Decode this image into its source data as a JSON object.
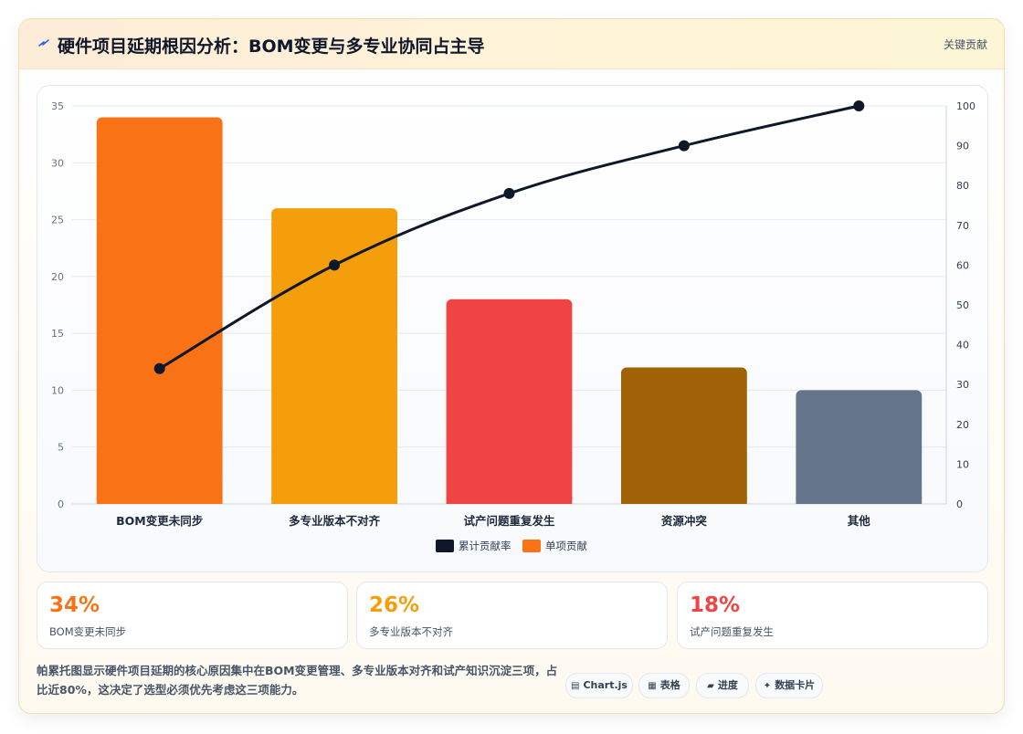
{
  "header": {
    "title": "硬件项目延期根因分析：BOM变更与多专业协同占主导",
    "tag": "关键贡献"
  },
  "chart_data": {
    "type": "bar",
    "categories": [
      "BOM变更未同步",
      "多专业版本不对齐",
      "试产问题重复发生",
      "资源冲突",
      "其他"
    ],
    "series": [
      {
        "name": "累计贡献率",
        "type": "line",
        "axis": "right",
        "values": [
          34,
          60,
          78,
          90,
          100
        ],
        "color": "#0f172a"
      },
      {
        "name": "单项贡献",
        "type": "bar",
        "axis": "left",
        "values": [
          34,
          26,
          18,
          12,
          10
        ],
        "colors": [
          "#f97316",
          "#f59e0b",
          "#ef4444",
          "#a16207",
          "#64748b"
        ]
      }
    ],
    "ylim": [
      0,
      35
    ],
    "y_ticks": [
      0,
      5,
      10,
      15,
      20,
      25,
      30,
      35
    ],
    "y2lim": [
      0,
      100
    ],
    "y2_ticks": [
      0,
      10,
      20,
      30,
      40,
      50,
      60,
      70,
      80,
      90,
      100
    ],
    "grid": true,
    "legend_position": "bottom-center"
  },
  "stats": [
    {
      "value": "34%",
      "label": "BOM变更未同步",
      "color": "#f97316"
    },
    {
      "value": "26%",
      "label": "多专业版本不对齐",
      "color": "#f59e0b"
    },
    {
      "value": "18%",
      "label": "试产问题重复发生",
      "color": "#ef4444"
    }
  ],
  "summary": "帕累托图显示硬件项目延期的核心原因集中在BOM变更管理、多专业版本对齐和试产知识沉淀三项，占比近80%，这决定了选型必须优先考虑这三项能力。",
  "chips": [
    {
      "icon": "▤",
      "label": "Chart.js"
    },
    {
      "icon": "▦",
      "label": "表格"
    },
    {
      "icon": "▰",
      "label": "进度"
    },
    {
      "icon": "✦",
      "label": "数据卡片"
    }
  ]
}
